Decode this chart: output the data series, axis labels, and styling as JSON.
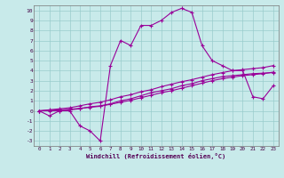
{
  "xlabel": "Windchill (Refroidissement éolien,°C)",
  "background_color": "#c8eaea",
  "grid_color": "#99cccc",
  "line_color": "#990099",
  "xlim": [
    -0.5,
    23.5
  ],
  "ylim": [
    -3.5,
    10.5
  ],
  "xticks": [
    0,
    1,
    2,
    3,
    4,
    5,
    6,
    7,
    8,
    9,
    10,
    11,
    12,
    13,
    14,
    15,
    16,
    17,
    18,
    19,
    20,
    21,
    22,
    23
  ],
  "yticks": [
    -3,
    -2,
    -1,
    0,
    1,
    2,
    3,
    4,
    5,
    6,
    7,
    8,
    9,
    10
  ],
  "series_x": [
    [
      0,
      1,
      2,
      3,
      4,
      5,
      6,
      7,
      8,
      9,
      10,
      11,
      12,
      13,
      14,
      15,
      16,
      17,
      18,
      19,
      20,
      21,
      22,
      23
    ],
    [
      0,
      1,
      2,
      3,
      4,
      5,
      6,
      7,
      8,
      9,
      10,
      11,
      12,
      13,
      14,
      15,
      16,
      17,
      18,
      19,
      20,
      21,
      22,
      23
    ],
    [
      0,
      1,
      2,
      3,
      4,
      5,
      6,
      7,
      8,
      9,
      10,
      11,
      12,
      13,
      14,
      15,
      16,
      17,
      18,
      19,
      20,
      21,
      22,
      23
    ],
    [
      0,
      1,
      2,
      3,
      4,
      5,
      6,
      7,
      8,
      9,
      10,
      11,
      12,
      13,
      14,
      15,
      16,
      17,
      18,
      19,
      20,
      21,
      22,
      23
    ]
  ],
  "series_y": [
    [
      0,
      -0.5,
      0,
      0,
      -1.5,
      -2.0,
      -3.0,
      4.5,
      7.0,
      6.5,
      8.5,
      8.5,
      9.0,
      9.8,
      10.2,
      9.8,
      6.5,
      5.0,
      4.5,
      4.0,
      4.0,
      1.4,
      1.2,
      2.5
    ],
    [
      0,
      0,
      0,
      0.1,
      0.2,
      0.4,
      0.5,
      0.7,
      1.0,
      1.2,
      1.5,
      1.8,
      2.0,
      2.2,
      2.5,
      2.7,
      3.0,
      3.2,
      3.4,
      3.5,
      3.6,
      3.7,
      3.75,
      3.8
    ],
    [
      0,
      0.05,
      0.1,
      0.15,
      0.25,
      0.35,
      0.45,
      0.65,
      0.85,
      1.05,
      1.3,
      1.55,
      1.8,
      2.0,
      2.25,
      2.5,
      2.75,
      3.0,
      3.2,
      3.35,
      3.5,
      3.6,
      3.7,
      3.85
    ],
    [
      0,
      0.1,
      0.2,
      0.3,
      0.5,
      0.7,
      0.85,
      1.1,
      1.4,
      1.6,
      1.9,
      2.1,
      2.4,
      2.65,
      2.9,
      3.1,
      3.35,
      3.6,
      3.8,
      4.0,
      4.1,
      4.2,
      4.3,
      4.5
    ]
  ]
}
